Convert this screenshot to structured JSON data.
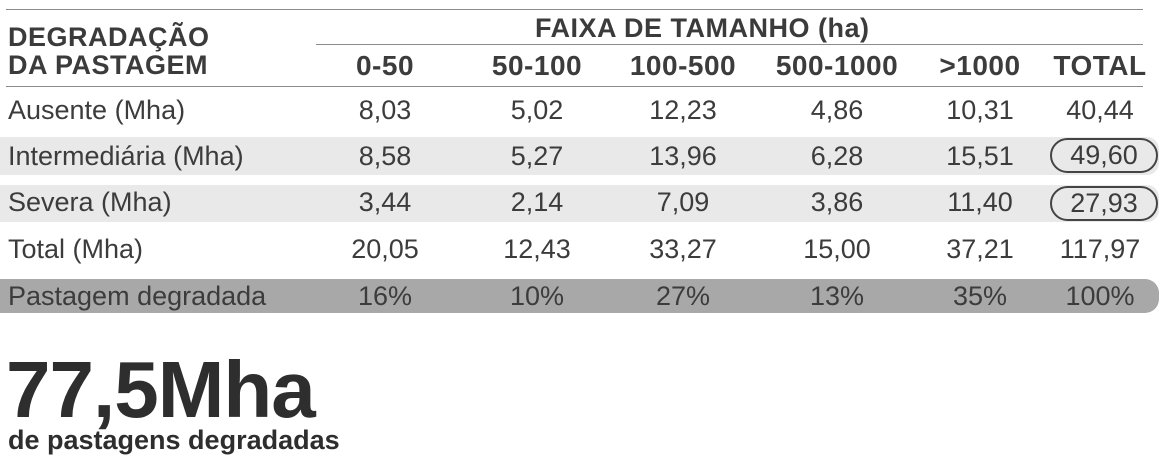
{
  "header": {
    "row_label_line1": "DEGRADAÇÃO",
    "row_label_line2": "DA PASTAGEM",
    "group_title": "FAIXA DE TAMANHO (ha)",
    "columns": [
      "0-50",
      "50-100",
      "100-500",
      "500-1000",
      ">1000",
      "TOTAL"
    ]
  },
  "rows": [
    {
      "label": "Ausente (Mha)",
      "values": [
        "8,03",
        "5,02",
        "12,23",
        "4,86",
        "10,31",
        "40,44"
      ]
    },
    {
      "label": "Intermediária (Mha)",
      "values": [
        "8,58",
        "5,27",
        "13,96",
        "6,28",
        "15,51",
        "49,60"
      ]
    },
    {
      "label": "Severa (Mha)",
      "values": [
        "3,44",
        "2,14",
        "7,09",
        "3,86",
        "11,40",
        "27,93"
      ]
    },
    {
      "label": "Total (Mha)",
      "values": [
        "20,05",
        "12,43",
        "33,27",
        "15,00",
        "37,21",
        "117,97"
      ]
    },
    {
      "label": "Pastagem degradada",
      "values": [
        "16%",
        "10%",
        "27%",
        "13%",
        "35%",
        "100%"
      ]
    }
  ],
  "highlight": {
    "value": "77,5Mha",
    "caption": "de pastagens degradadas"
  },
  "colors": {
    "light_band": "#e9e9e9",
    "dark_band": "#a8a8a8",
    "text": "#3a3a3a"
  }
}
